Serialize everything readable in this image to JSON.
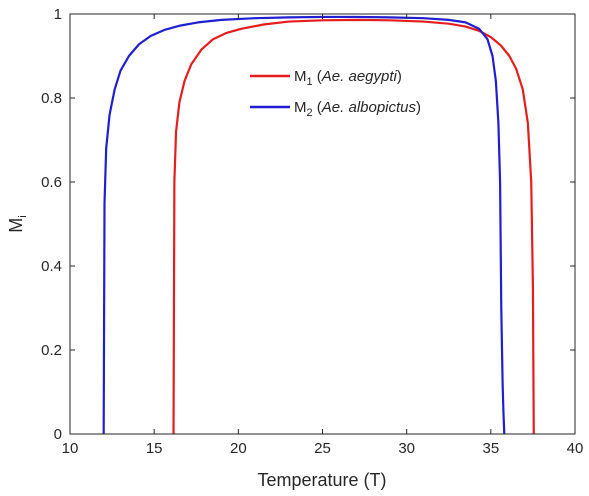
{
  "chart_data": {
    "type": "line",
    "title": "",
    "xlabel": "Temperature (T)",
    "ylabel_main": "M",
    "ylabel_sub": "i",
    "xlim": [
      10,
      40
    ],
    "ylim": [
      0,
      1
    ],
    "xticks": [
      "10",
      "15",
      "20",
      "25",
      "30",
      "35",
      "40"
    ],
    "yticks": [
      "0",
      "0.2",
      "0.4",
      "0.6",
      "0.8",
      "1"
    ],
    "grid": false,
    "legend": {
      "placement": "inside-upper-right"
    },
    "series": [
      {
        "name_main": "M",
        "name_sub": "1",
        "name_paren_open": " (",
        "name_italic": "Ae. aegypti",
        "name_paren_close": ")",
        "color": "#e41e1e",
        "x": [
          16.15,
          16.2,
          16.3,
          16.5,
          16.8,
          17.2,
          17.8,
          18.5,
          19.3,
          20.2,
          21.5,
          23,
          25,
          27,
          29,
          31,
          32.5,
          33.5,
          34.3,
          35,
          35.6,
          36.1,
          36.5,
          36.9,
          37.2,
          37.4,
          37.5,
          37.55
        ],
        "y": [
          0,
          0.6,
          0.72,
          0.79,
          0.84,
          0.88,
          0.915,
          0.94,
          0.955,
          0.965,
          0.975,
          0.982,
          0.985,
          0.986,
          0.985,
          0.982,
          0.977,
          0.97,
          0.96,
          0.945,
          0.925,
          0.9,
          0.87,
          0.82,
          0.74,
          0.6,
          0.35,
          0
        ]
      },
      {
        "name_main": "M",
        "name_sub": "2",
        "name_paren_open": " (",
        "name_italic": "Ae. albopictus",
        "name_paren_close": ")",
        "color": "#1f1fd0",
        "x": [
          12.0,
          12.05,
          12.15,
          12.35,
          12.65,
          13.0,
          13.5,
          14.1,
          14.8,
          15.6,
          16.5,
          17.6,
          19,
          21,
          23,
          25,
          27,
          29,
          31,
          32.5,
          33.5,
          34.3,
          34.8,
          35.1,
          35.3,
          35.45,
          35.55,
          35.62,
          35.7,
          35.75,
          35.8
        ],
        "y": [
          0,
          0.55,
          0.68,
          0.76,
          0.82,
          0.865,
          0.9,
          0.928,
          0.948,
          0.962,
          0.972,
          0.98,
          0.986,
          0.99,
          0.992,
          0.993,
          0.993,
          0.992,
          0.99,
          0.986,
          0.98,
          0.965,
          0.94,
          0.9,
          0.84,
          0.74,
          0.6,
          0.3,
          0.12,
          0.05,
          0
        ]
      }
    ]
  }
}
